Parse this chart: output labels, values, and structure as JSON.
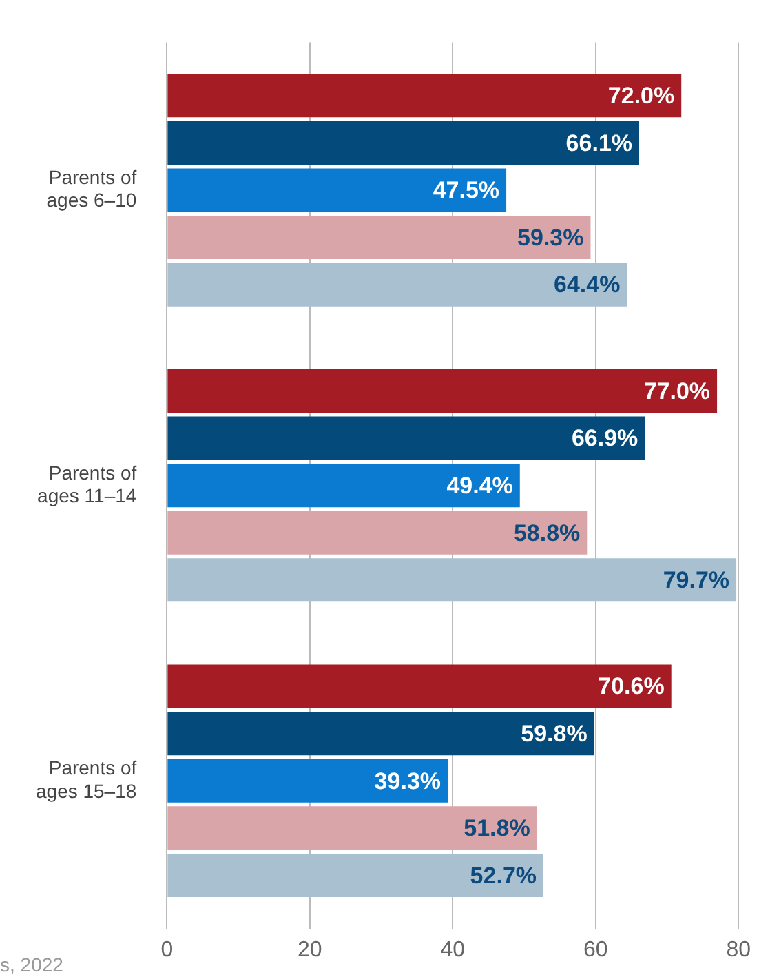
{
  "chart_data": {
    "type": "bar",
    "orientation": "horizontal",
    "categories": [
      "Parents of ages 6–10",
      "Parents of ages 11–14",
      "Parents of ages 15–18"
    ],
    "series": [
      {
        "color": "#a51c24",
        "values": [
          72.0,
          77.0,
          70.6
        ],
        "value_labels": [
          "72.0%",
          "77.0%",
          "70.6%"
        ]
      },
      {
        "color": "#044a7a",
        "values": [
          66.1,
          66.9,
          59.8
        ],
        "value_labels": [
          "66.1%",
          "66.9%",
          "59.8%"
        ]
      },
      {
        "color": "#0a7bd0",
        "values": [
          47.5,
          49.4,
          39.3
        ],
        "value_labels": [
          "47.5%",
          "49.4%",
          "39.3%"
        ]
      },
      {
        "color": "#d9a5a8",
        "values": [
          59.3,
          58.8,
          51.8
        ],
        "value_labels": [
          "59.3%",
          "58.8%",
          "51.8%"
        ]
      },
      {
        "color": "#a9c0d0",
        "values": [
          64.4,
          79.7,
          52.7
        ],
        "value_labels": [
          "64.4%",
          "79.7%",
          "52.7%"
        ]
      }
    ],
    "xlim": [
      0,
      80
    ],
    "xticks": [
      0,
      20,
      40,
      60,
      80
    ],
    "grid": "x",
    "legend": false,
    "annotations": [
      "s, 2022"
    ]
  }
}
